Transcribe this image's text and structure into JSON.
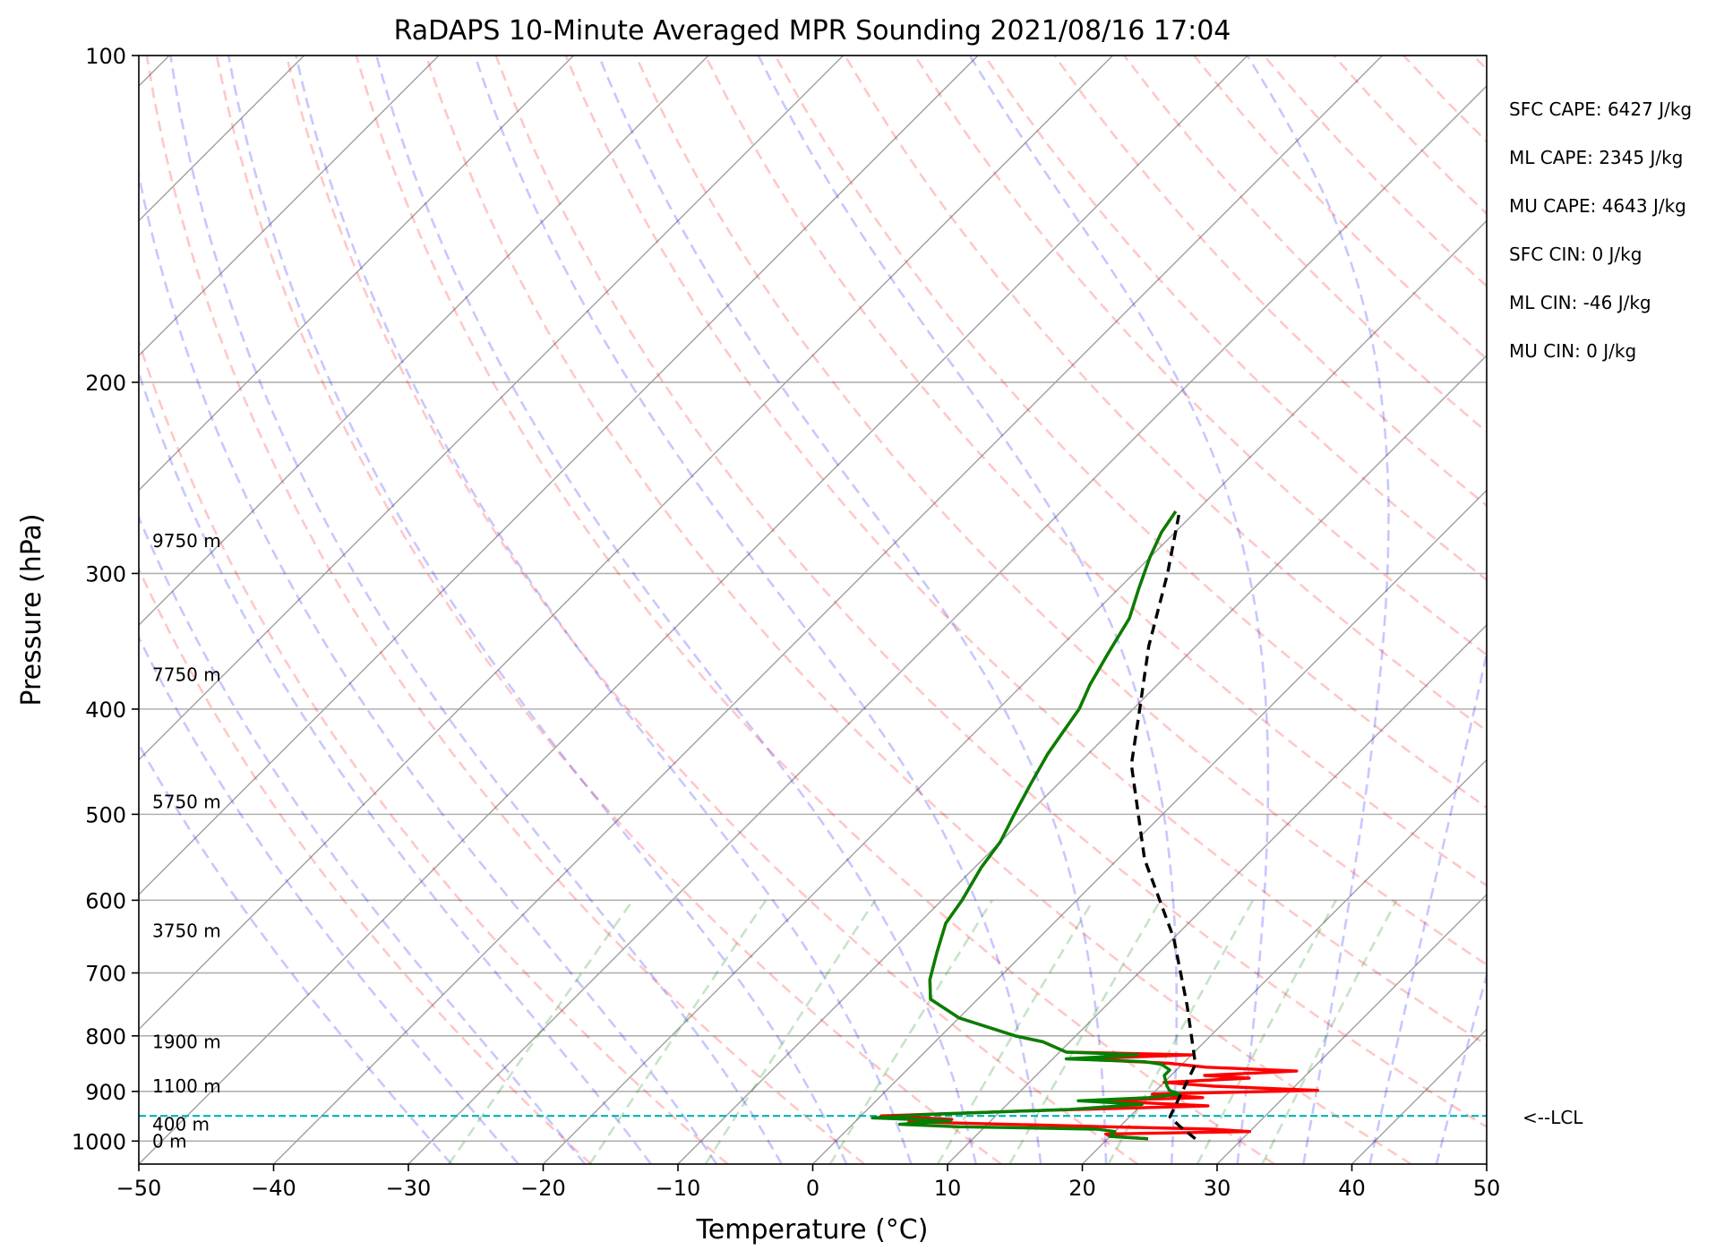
{
  "chart_data": {
    "type": "line",
    "title": "RaDAPS 10-Minute Averaged MPR Sounding 2021/08/16 17:04",
    "xlabel": "Temperature (°C)",
    "ylabel": "Pressure (hPa)",
    "xlim": [
      -50,
      50
    ],
    "ylim": [
      1050,
      100
    ],
    "y_scale": "log",
    "skew": true,
    "grid": true,
    "x_ticks": [
      -50,
      -40,
      -30,
      -20,
      -10,
      0,
      10,
      20,
      30,
      40,
      50
    ],
    "x_tick_labels": [
      "−50",
      "−40",
      "−30",
      "−20",
      "−10",
      "0",
      "10",
      "20",
      "30",
      "40",
      "50"
    ],
    "y_ticks": [
      1000,
      900,
      800,
      700,
      600,
      500,
      400,
      300,
      200,
      100
    ],
    "y_tick_labels": [
      "1000",
      "900",
      "800",
      "700",
      "600",
      "500",
      "400",
      "300",
      "200",
      "100"
    ],
    "background_lines": {
      "dry_adiabats": {
        "color": "#ff0000",
        "style": "dashed",
        "alpha": 0.22
      },
      "moist_adiabats": {
        "color": "#0000ff",
        "style": "dashed",
        "alpha": 0.22
      },
      "mixing_ratio": {
        "color": "#008000",
        "style": "dashed",
        "alpha": 0.22
      },
      "isotherms": {
        "color": "#a0a0a0",
        "style": "solid"
      }
    },
    "series": [
      {
        "color": "#ff0000",
        "points": [
          [
            995,
            23.0
          ],
          [
            990,
            20.0
          ],
          [
            985,
            19.5
          ],
          [
            980,
            30.0
          ],
          [
            975,
            27.0
          ],
          [
            970,
            19.0
          ],
          [
            960,
            4.0
          ],
          [
            955,
            7.0
          ],
          [
            948,
            1.5
          ],
          [
            938,
            12.0
          ],
          [
            928,
            25.0
          ],
          [
            922,
            20.0
          ],
          [
            918,
            16.0
          ],
          [
            912,
            24.0
          ],
          [
            905,
            20.0
          ],
          [
            898,
            32.0
          ],
          [
            890,
            24.0
          ],
          [
            883,
            20.0
          ],
          [
            875,
            26.0
          ],
          [
            870,
            22.5
          ],
          [
            862,
            29.0
          ],
          [
            855,
            22.0
          ],
          [
            848,
            19.0
          ],
          [
            840,
            12.0
          ],
          [
            833,
            20.0
          ],
          [
            828,
            10.5
          ],
          [
            810,
            8.0
          ],
          [
            800,
            5.5
          ],
          [
            770,
            0.0
          ],
          [
            740,
            -3.5
          ],
          [
            710,
            -5.0
          ],
          [
            670,
            -6.5
          ],
          [
            630,
            -8.0
          ],
          [
            600,
            -8.5
          ],
          [
            560,
            -9.5
          ],
          [
            530,
            -10.0
          ],
          [
            500,
            -11.0
          ],
          [
            470,
            -12.0
          ],
          [
            440,
            -13.0
          ],
          [
            420,
            -13.5
          ],
          [
            400,
            -14.0
          ],
          [
            380,
            -15.0
          ],
          [
            355,
            -16.0
          ],
          [
            330,
            -17.0
          ],
          [
            310,
            -18.5
          ],
          [
            290,
            -20.0
          ],
          [
            275,
            -21.0
          ],
          [
            263,
            -21.5
          ]
        ]
      },
      {
        "color": "#008000",
        "points": [
          [
            995,
            23.0
          ],
          [
            990,
            20.0
          ],
          [
            980,
            20.0
          ],
          [
            975,
            18.5
          ],
          [
            970,
            8.0
          ],
          [
            965,
            3.5
          ],
          [
            958,
            7.0
          ],
          [
            952,
            1.0
          ],
          [
            945,
            5.0
          ],
          [
            935,
            15.0
          ],
          [
            925,
            20.0
          ],
          [
            918,
            15.0
          ],
          [
            912,
            20.0
          ],
          [
            905,
            22.0
          ],
          [
            898,
            21.0
          ],
          [
            890,
            20.5
          ],
          [
            880,
            20.0
          ],
          [
            870,
            19.5
          ],
          [
            860,
            19.5
          ],
          [
            850,
            18.5
          ],
          [
            845,
            17.0
          ],
          [
            840,
            11.0
          ],
          [
            833,
            16.0
          ],
          [
            828,
            10.5
          ],
          [
            810,
            8.0
          ],
          [
            800,
            5.5
          ],
          [
            770,
            0.0
          ],
          [
            740,
            -3.5
          ],
          [
            710,
            -5.0
          ],
          [
            670,
            -6.5
          ],
          [
            630,
            -8.0
          ],
          [
            600,
            -8.5
          ],
          [
            560,
            -9.5
          ],
          [
            530,
            -10.0
          ],
          [
            500,
            -11.0
          ],
          [
            470,
            -12.0
          ],
          [
            440,
            -13.0
          ],
          [
            420,
            -13.5
          ],
          [
            400,
            -14.0
          ],
          [
            380,
            -15.0
          ],
          [
            355,
            -16.0
          ],
          [
            330,
            -17.0
          ],
          [
            310,
            -18.5
          ],
          [
            290,
            -20.0
          ],
          [
            275,
            -21.0
          ],
          [
            263,
            -21.5
          ]
        ]
      },
      {
        "color": "#000000",
        "style": "dashed",
        "points": [
          [
            995,
            26.5
          ],
          [
            970,
            24.5
          ],
          [
            950,
            23.0
          ],
          [
            850,
            21.0
          ],
          [
            750,
            16.0
          ],
          [
            650,
            10.0
          ],
          [
            550,
            2.0
          ],
          [
            450,
            -6.0
          ],
          [
            400,
            -9.5
          ],
          [
            350,
            -13.5
          ],
          [
            300,
            -17.5
          ],
          [
            265,
            -21.0
          ]
        ]
      }
    ],
    "lcl": {
      "pressure": 948,
      "label": "<--LCL",
      "color": "#00b3b3"
    },
    "height_labels": [
      {
        "p": 1000,
        "label": "0 m"
      },
      {
        "p": 965,
        "label": "400 m"
      },
      {
        "p": 890,
        "label": "1100 m"
      },
      {
        "p": 810,
        "label": "1900 m"
      },
      {
        "p": 640,
        "label": "3750 m"
      },
      {
        "p": 487,
        "label": "5750 m"
      },
      {
        "p": 372,
        "label": "7750 m"
      },
      {
        "p": 280,
        "label": "9750 m"
      }
    ],
    "annotations": [
      "SFC CAPE: 6427 J/kg",
      "ML CAPE: 2345 J/kg",
      "MU CAPE: 4643 J/kg",
      "SFC CIN: 0 J/kg",
      "ML CIN: -46 J/kg",
      "MU CIN: 0 J/kg"
    ]
  }
}
